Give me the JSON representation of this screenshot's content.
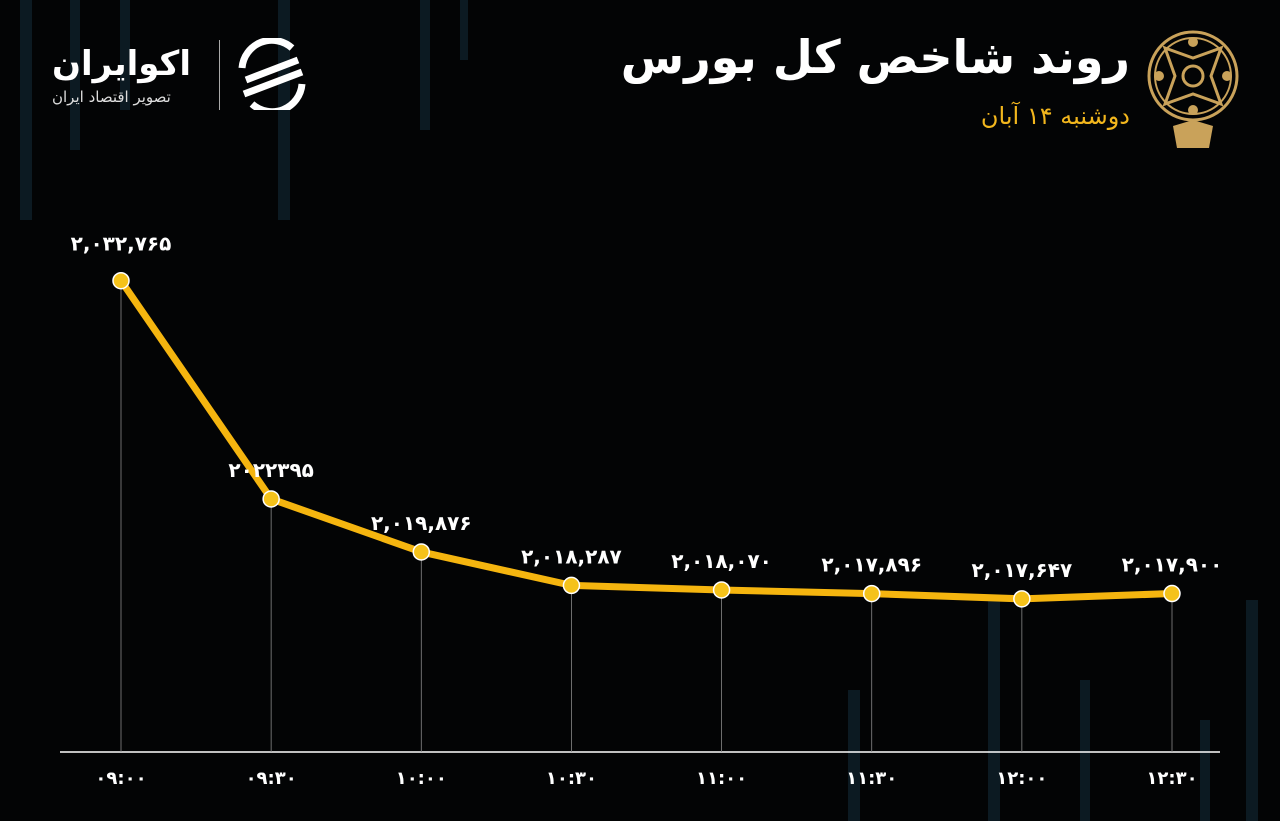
{
  "header": {
    "title": "روند شاخص کل بورس",
    "subtitle": "دوشنبه ۱۴ آبان",
    "exchange_logo": "tehran-stock-exchange-emblem",
    "brand_name": "اکوایران",
    "brand_tagline": "تصویر اقتصاد ایران"
  },
  "colors": {
    "background": "#030405",
    "line": "#f5b50f",
    "point": "#f5c21a",
    "subtitle": "#f2b61d",
    "text": "#ffffff",
    "logo_gold": "#c9a25a"
  },
  "chart_data": {
    "type": "line",
    "title": "روند شاخص کل بورس",
    "xlabel": "",
    "ylabel": "",
    "categories": [
      "۰۹:۰۰",
      "۰۹:۳۰",
      "۱۰:۰۰",
      "۱۰:۳۰",
      "۱۱:۰۰",
      "۱۱:۳۰",
      "۱۲:۰۰",
      "۱۲:۳۰"
    ],
    "values": [
      2032765,
      2022395,
      2019876,
      2018287,
      2018070,
      2017896,
      2017647,
      2017900
    ],
    "data_labels": [
      "۲,۰۳۲,۷۶۵",
      "۲۰۲۲۳۹۵",
      "۲,۰۱۹,۸۷۶",
      "۲,۰۱۸,۲۸۷",
      "۲,۰۱۸,۰۷۰",
      "۲,۰۱۷,۸۹۶",
      "۲,۰۱۷,۶۴۷",
      "۲,۰۱۷,۹۰۰"
    ],
    "ylim": [
      2010370,
      2036600
    ],
    "grid": false,
    "legend": "none"
  }
}
